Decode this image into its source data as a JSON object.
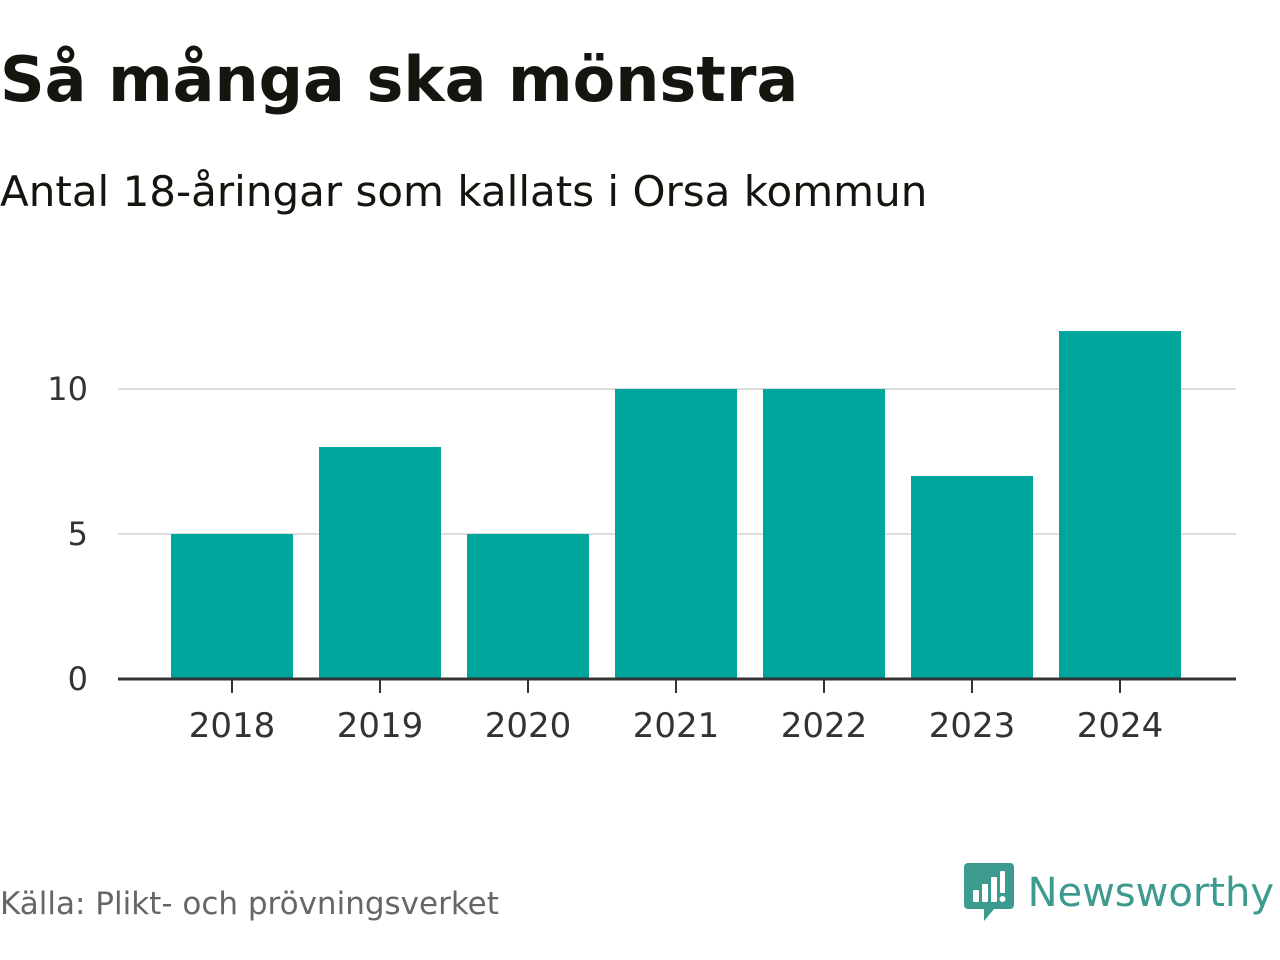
{
  "title": "Så många ska mönstra",
  "subtitle": "Antal 18-åringar som kallats i Orsa kommun",
  "source": "Källa: Plikt- och prövningsverket",
  "brand": {
    "name": "Newsworthy",
    "icon": "newsworthy-logo-icon",
    "color": "#3c9a8f"
  },
  "colors": {
    "bar": "#00a59b",
    "grid": "#dddddd",
    "axis": "#333333",
    "tick_text": "#333333"
  },
  "chart_data": {
    "type": "bar",
    "title": "Så många ska mönstra",
    "subtitle": "Antal 18-åringar som kallats i Orsa kommun",
    "xlabel": "",
    "ylabel": "",
    "categories": [
      "2018",
      "2019",
      "2020",
      "2021",
      "2022",
      "2023",
      "2024"
    ],
    "values": [
      5,
      8,
      5,
      10,
      10,
      7,
      12
    ],
    "ylim": [
      0,
      12
    ],
    "yticks": [
      0,
      5,
      10
    ],
    "grid": true,
    "legend": "none"
  }
}
